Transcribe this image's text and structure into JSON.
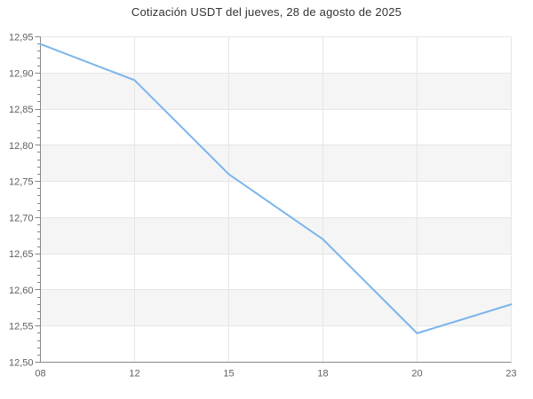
{
  "chart": {
    "title": "Cotización USDT del jueves, 28 de agosto de 2025"
  },
  "chart_data": {
    "type": "line",
    "title": "Cotización USDT del jueves, 28 de agosto de 2025",
    "categories": [
      "08",
      "12",
      "15",
      "18",
      "20",
      "23"
    ],
    "series": [
      {
        "name": "USDT",
        "values": [
          12.94,
          12.89,
          12.76,
          12.67,
          12.54,
          12.58
        ]
      }
    ],
    "xlabel": "",
    "ylabel": "",
    "ylim": [
      12.5,
      12.95
    ],
    "y_major_step": 0.05,
    "y_minor_step": 0.01,
    "y_tick_labels": [
      "12,95",
      "12,90",
      "12,85",
      "12,80",
      "12,75",
      "12,70",
      "12,65",
      "12,60",
      "12,55",
      "12,50"
    ],
    "decimal_separator": ",",
    "grid": true,
    "legend": "none",
    "plot_bands_alternating": true,
    "colors": {
      "line": "#7cb5ec",
      "plot_band": "#f5f5f5",
      "gridline": "#e6e6e6",
      "axis_line": "#888888",
      "tick": "#888888",
      "label": "#606060",
      "title": "#333333",
      "background": "#ffffff"
    }
  }
}
